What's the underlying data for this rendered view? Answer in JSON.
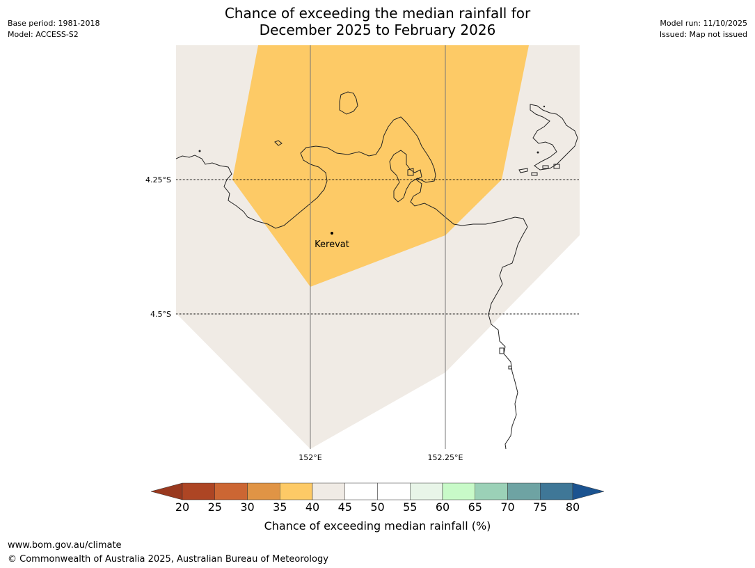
{
  "title": {
    "line1": "Chance of exceeding the median rainfall for",
    "line2": "December 2025 to February 2026"
  },
  "meta_left": {
    "base_period": "Base period: 1981-2018",
    "model": "Model: ACCESS-S2"
  },
  "meta_right": {
    "model_run": "Model run: 11/10/2025",
    "issued": "Issued: Map not issued"
  },
  "map": {
    "place": "Kerevat",
    "lat_labels": [
      "4.25°S",
      "4.5°S"
    ],
    "lon_labels": [
      "152°E",
      "152.25°E"
    ]
  },
  "colorbar": {
    "ticks": [
      "20",
      "25",
      "30",
      "35",
      "40",
      "45",
      "50",
      "55",
      "60",
      "65",
      "70",
      "75",
      "80"
    ],
    "colors": [
      "#ad4524",
      "#cc6633",
      "#e09445",
      "#fdca66",
      "#f0ebe5",
      "#ffffff",
      "#ffffff",
      "#e8f5e8",
      "#c8fac8",
      "#9bd1b7",
      "#6ea3a3",
      "#3f7797"
    ],
    "under_color": "#99391f",
    "over_color": "#1b5390",
    "label": "Chance of exceeding median rainfall (%)"
  },
  "palette": {
    "below_median_35_40": "#fdca66",
    "neutral_40_45": "#f0ebe5",
    "coastline": "#222222"
  },
  "footer": {
    "url": "www.bom.gov.au/climate",
    "copyright": "© Commonwealth of Australia 2025, Australian Bureau of Meteorology"
  }
}
